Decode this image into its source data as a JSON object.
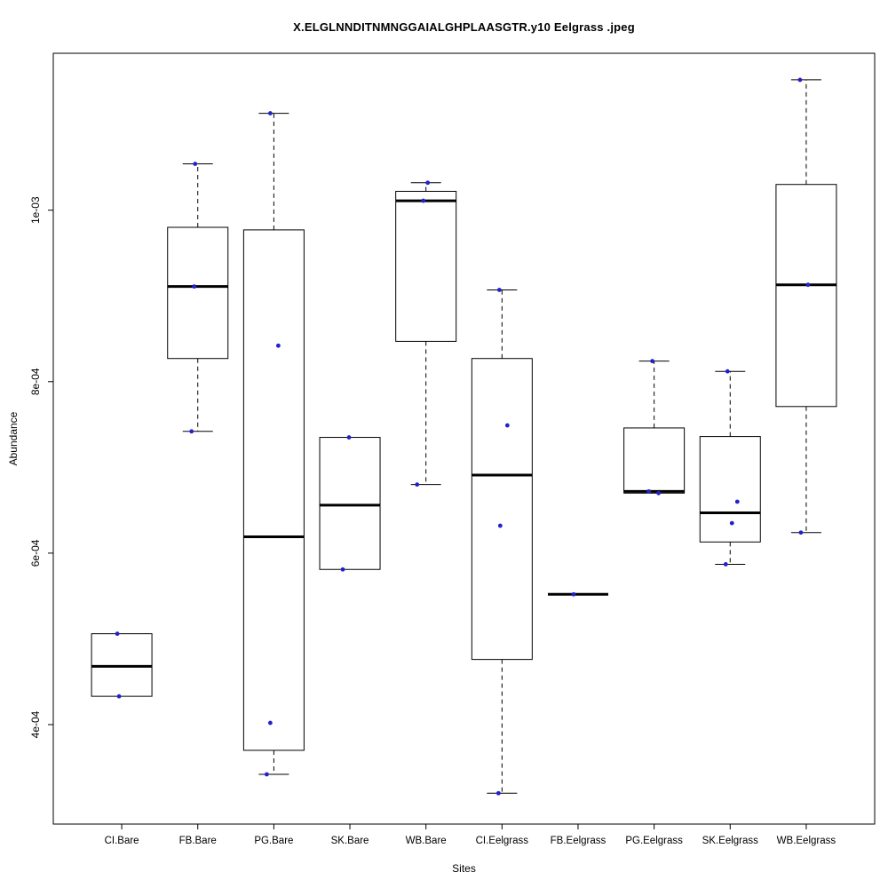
{
  "chart_data": {
    "type": "boxplot",
    "title": "X.ELGLNNDITNMNGGAIALGHPLAASGTR.y10 Eelgrass .jpeg",
    "xlabel": "Sites",
    "ylabel": "Abundance",
    "ylim": [
      0.000284,
      0.001183
    ],
    "grid": false,
    "legend": "none",
    "point_color": "#2222cc",
    "axis_color": "#000000",
    "yticks": [
      {
        "value": 0.0004,
        "label": "4e-04"
      },
      {
        "value": 0.0006,
        "label": "6e-04"
      },
      {
        "value": 0.0008,
        "label": "8e-04"
      },
      {
        "value": 0.001,
        "label": "1e-03"
      }
    ],
    "groups": [
      {
        "label": "CI.Bare",
        "low": 0.000433,
        "q1": 0.000433,
        "median": 0.000468,
        "q3": 0.000506,
        "high": 0.000506,
        "points": [
          {
            "v": 0.000506,
            "dx": -5
          },
          {
            "v": 0.000433,
            "dx": -3
          }
        ]
      },
      {
        "label": "FB.Bare",
        "low": 0.000742,
        "q1": 0.000827,
        "median": 0.000911,
        "q3": 0.00098,
        "high": 0.001054,
        "points": [
          {
            "v": 0.001054,
            "dx": -3
          },
          {
            "v": 0.000911,
            "dx": -4
          },
          {
            "v": 0.000742,
            "dx": -7
          }
        ]
      },
      {
        "label": "PG.Bare",
        "low": 0.000342,
        "q1": 0.00037,
        "median": 0.000619,
        "q3": 0.000977,
        "high": 0.001113,
        "points": [
          {
            "v": 0.001113,
            "dx": -4
          },
          {
            "v": 0.000842,
            "dx": 5
          },
          {
            "v": 0.000402,
            "dx": -4
          },
          {
            "v": 0.000342,
            "dx": -8
          }
        ]
      },
      {
        "label": "SK.Bare",
        "low": 0.000581,
        "q1": 0.000581,
        "median": 0.000656,
        "q3": 0.000735,
        "high": 0.000735,
        "points": [
          {
            "v": 0.000735,
            "dx": -1
          },
          {
            "v": 0.000581,
            "dx": -8
          }
        ]
      },
      {
        "label": "WB.Bare",
        "low": 0.00068,
        "q1": 0.000847,
        "median": 0.001011,
        "q3": 0.001022,
        "high": 0.001032,
        "points": [
          {
            "v": 0.001032,
            "dx": 2
          },
          {
            "v": 0.001011,
            "dx": -3
          },
          {
            "v": 0.00068,
            "dx": -10
          }
        ]
      },
      {
        "label": "CI.Eelgrass",
        "low": 0.00032,
        "q1": 0.000476,
        "median": 0.000691,
        "q3": 0.000827,
        "high": 0.000907,
        "points": [
          {
            "v": 0.000907,
            "dx": -3
          },
          {
            "v": 0.000749,
            "dx": 6
          },
          {
            "v": 0.000632,
            "dx": -2
          },
          {
            "v": 0.00032,
            "dx": -4
          }
        ]
      },
      {
        "label": "FB.Eelgrass",
        "low": 0.000552,
        "q1": 0.000552,
        "median": 0.000552,
        "q3": 0.000552,
        "high": 0.000552,
        "points": [
          {
            "v": 0.000552,
            "dx": -5
          }
        ]
      },
      {
        "label": "PG.Eelgrass",
        "low": 0.00067,
        "q1": 0.00067,
        "median": 0.000672,
        "q3": 0.000746,
        "high": 0.000824,
        "points": [
          {
            "v": 0.000824,
            "dx": -2
          },
          {
            "v": 0.000672,
            "dx": -6
          },
          {
            "v": 0.00067,
            "dx": 5
          }
        ]
      },
      {
        "label": "SK.Eelgrass",
        "low": 0.000587,
        "q1": 0.000613,
        "median": 0.000647,
        "q3": 0.000736,
        "high": 0.000812,
        "points": [
          {
            "v": 0.000812,
            "dx": -3
          },
          {
            "v": 0.00066,
            "dx": 8
          },
          {
            "v": 0.000635,
            "dx": 2
          },
          {
            "v": 0.000587,
            "dx": -5
          }
        ]
      },
      {
        "label": "WB.Eelgrass",
        "low": 0.000624,
        "q1": 0.000771,
        "median": 0.000913,
        "q3": 0.00103,
        "high": 0.001152,
        "points": [
          {
            "v": 0.001152,
            "dx": -7
          },
          {
            "v": 0.000913,
            "dx": 2
          },
          {
            "v": 0.000624,
            "dx": -6
          }
        ]
      }
    ]
  }
}
